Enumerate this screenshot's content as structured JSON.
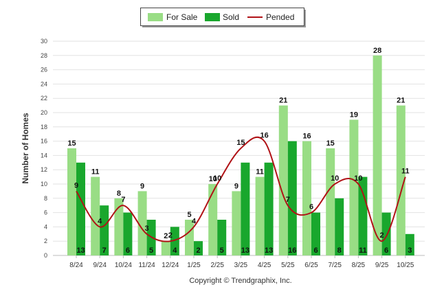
{
  "legend": {
    "for_sale_label": "For Sale",
    "sold_label": "Sold",
    "pended_label": "Pended"
  },
  "copyright": "Copyright © Trendgraphix, Inc.",
  "chart_data": {
    "type": "bar",
    "categories": [
      "8/24",
      "9/24",
      "10/24",
      "11/24",
      "12/24",
      "1/25",
      "2/25",
      "3/25",
      "4/25",
      "5/25",
      "6/25",
      "7/25",
      "8/25",
      "9/25",
      "10/25"
    ],
    "series": [
      {
        "name": "For Sale",
        "type": "bar",
        "color": "#99dd85",
        "values": [
          15,
          11,
          8,
          9,
          2,
          5,
          10,
          9,
          11,
          21,
          16,
          15,
          19,
          28,
          21
        ]
      },
      {
        "name": "Sold",
        "type": "bar",
        "color": "#19a72d",
        "values": [
          13,
          7,
          6,
          5,
          4,
          2,
          5,
          13,
          13,
          16,
          6,
          8,
          11,
          6,
          3
        ]
      },
      {
        "name": "Pended",
        "type": "line",
        "color": "#b01216",
        "values": [
          9,
          4,
          7,
          3,
          2,
          4,
          10,
          15,
          16,
          7,
          6,
          10,
          10,
          2,
          11
        ]
      }
    ],
    "ylabel": "Number of Homes",
    "xlabel": "",
    "title": "",
    "ylim": [
      0,
      30
    ],
    "yticks": [
      0,
      2,
      4,
      6,
      8,
      10,
      12,
      14,
      16,
      18,
      20,
      22,
      24,
      26,
      28,
      30
    ],
    "grid": true,
    "legend_position": "top-center"
  }
}
